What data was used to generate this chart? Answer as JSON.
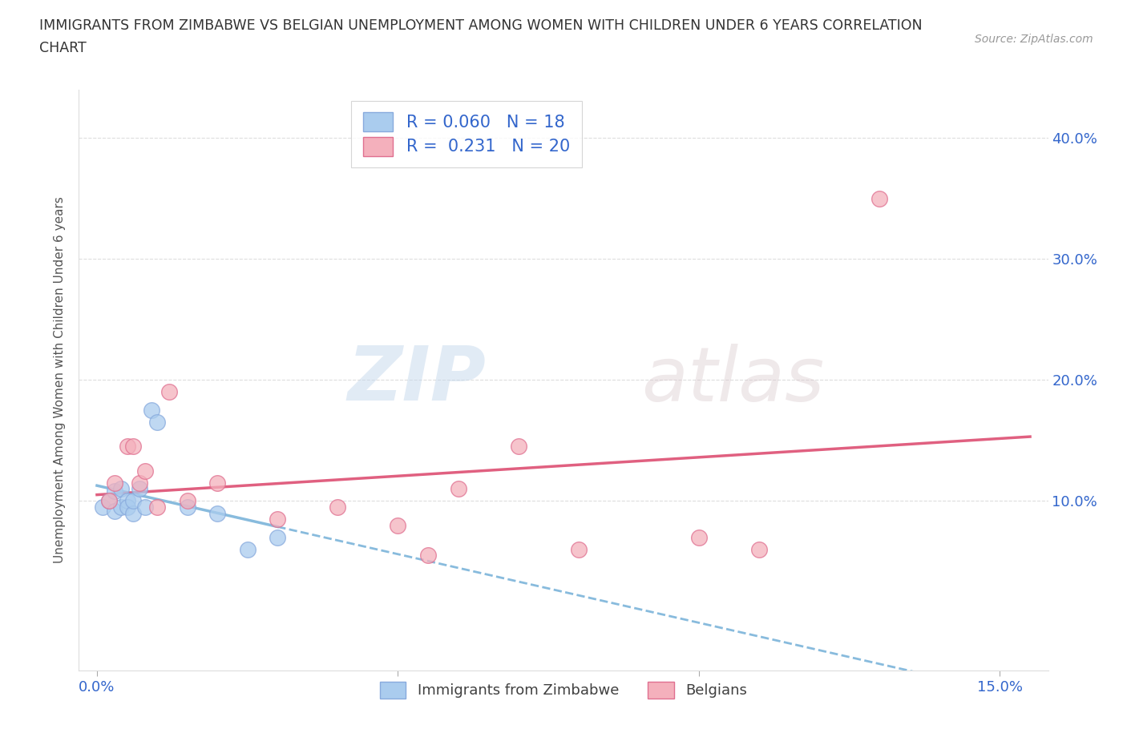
{
  "title_line1": "IMMIGRANTS FROM ZIMBABWE VS BELGIAN UNEMPLOYMENT AMONG WOMEN WITH CHILDREN UNDER 6 YEARS CORRELATION",
  "title_line2": "CHART",
  "source": "Source: ZipAtlas.com",
  "ylabel": "Unemployment Among Women with Children Under 6 years",
  "xlim": [
    -0.003,
    0.158
  ],
  "ylim": [
    -0.04,
    0.44
  ],
  "yticks": [
    0.0,
    0.1,
    0.2,
    0.3,
    0.4
  ],
  "ytick_labels_right": [
    "",
    "10.0%",
    "20.0%",
    "30.0%",
    "40.0%"
  ],
  "xticks": [
    0.0,
    0.05,
    0.1,
    0.15
  ],
  "xtick_labels": [
    "0.0%",
    "",
    "",
    "15.0%"
  ],
  "blue_scatter_x": [
    0.001,
    0.002,
    0.003,
    0.003,
    0.004,
    0.004,
    0.005,
    0.005,
    0.006,
    0.006,
    0.007,
    0.008,
    0.009,
    0.01,
    0.015,
    0.02,
    0.025,
    0.03
  ],
  "blue_scatter_y": [
    0.095,
    0.1,
    0.092,
    0.108,
    0.095,
    0.11,
    0.1,
    0.095,
    0.09,
    0.1,
    0.11,
    0.095,
    0.175,
    0.165,
    0.095,
    0.09,
    0.06,
    0.07
  ],
  "pink_scatter_x": [
    0.002,
    0.003,
    0.005,
    0.006,
    0.007,
    0.008,
    0.01,
    0.012,
    0.015,
    0.02,
    0.03,
    0.04,
    0.05,
    0.055,
    0.06,
    0.07,
    0.08,
    0.1,
    0.11,
    0.13
  ],
  "pink_scatter_y": [
    0.1,
    0.115,
    0.145,
    0.145,
    0.115,
    0.125,
    0.095,
    0.19,
    0.1,
    0.115,
    0.085,
    0.095,
    0.08,
    0.055,
    0.11,
    0.145,
    0.06,
    0.07,
    0.06,
    0.35
  ],
  "blue_color": "#aaccee",
  "pink_color": "#f4b0bc",
  "blue_edge_color": "#88aadd",
  "pink_edge_color": "#e07090",
  "blue_line_color": "#88bbdd",
  "pink_line_color": "#e06080",
  "blue_R": 0.06,
  "blue_N": 18,
  "pink_R": 0.231,
  "pink_N": 20,
  "watermark_zip": "ZIP",
  "watermark_atlas": "atlas",
  "legend_label_blue": "Immigrants from Zimbabwe",
  "legend_label_pink": "Belgians",
  "grid_color": "#dddddd",
  "title_color": "#333333",
  "axis_label_color": "#555555",
  "tick_color": "#3366cc",
  "stat_color": "#3366cc",
  "source_color": "#999999"
}
